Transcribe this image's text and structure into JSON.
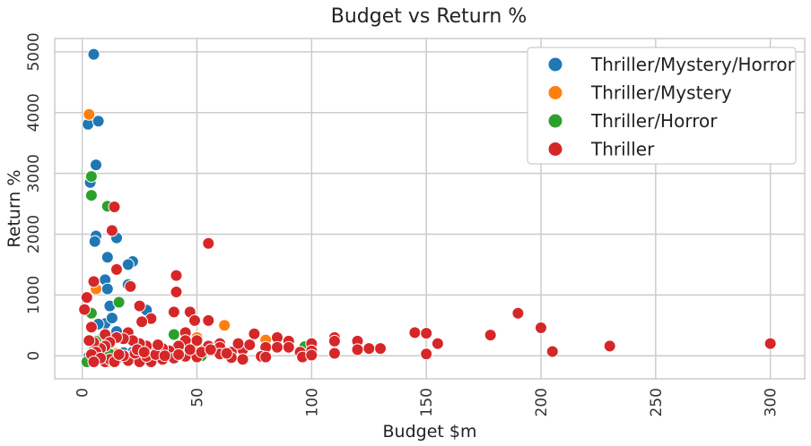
{
  "chart_data": {
    "type": "scatter",
    "title": "Budget vs Return %",
    "xlabel": "Budget $m",
    "ylabel": "Return %",
    "xlim": [
      -12,
      315
    ],
    "ylim": [
      -380,
      5220
    ],
    "xticks": [
      0,
      50,
      100,
      150,
      200,
      250,
      300
    ],
    "yticks": [
      0,
      1000,
      2000,
      3000,
      4000,
      5000
    ],
    "grid": true,
    "legend_position": "top-right",
    "series": [
      {
        "name": "Thriller/Mystery/Horror",
        "color": "#1f77b4",
        "points": [
          [
            5,
            4960
          ],
          [
            2.5,
            3810
          ],
          [
            7,
            3860
          ],
          [
            6,
            3140
          ],
          [
            3.5,
            2850
          ],
          [
            6,
            1970
          ],
          [
            5.5,
            1880
          ],
          [
            15,
            1940
          ],
          [
            22,
            1550
          ],
          [
            20,
            1500
          ],
          [
            11,
            1620
          ],
          [
            10,
            1250
          ],
          [
            20,
            1170
          ],
          [
            11,
            1100
          ],
          [
            12,
            820
          ],
          [
            10,
            530
          ],
          [
            13,
            620
          ],
          [
            7,
            520
          ],
          [
            28,
            750
          ],
          [
            15,
            400
          ],
          [
            9,
            300
          ],
          [
            5,
            180
          ],
          [
            12,
            100
          ],
          [
            18,
            50
          ],
          [
            3,
            -10
          ],
          [
            8,
            -30
          ],
          [
            10,
            -80
          ],
          [
            6,
            -60
          ],
          [
            22,
            60
          ]
        ]
      },
      {
        "name": "Thriller/Mystery",
        "color": "#ff7f0e",
        "points": [
          [
            3,
            3970
          ],
          [
            6,
            1100
          ],
          [
            62,
            500
          ],
          [
            50,
            300
          ],
          [
            80,
            260
          ],
          [
            50,
            150
          ],
          [
            12,
            80
          ],
          [
            15,
            40
          ],
          [
            10,
            -90
          ],
          [
            11,
            -100
          ],
          [
            8,
            0
          ],
          [
            20,
            -20
          ]
        ]
      },
      {
        "name": "Thriller/Horror",
        "color": "#2ca02c",
        "points": [
          [
            4,
            2950
          ],
          [
            4,
            2640
          ],
          [
            11,
            2460
          ],
          [
            4,
            700
          ],
          [
            16,
            880
          ],
          [
            6,
            240
          ],
          [
            9,
            140
          ],
          [
            2,
            -100
          ],
          [
            5,
            80
          ],
          [
            12,
            30
          ],
          [
            52,
            0
          ],
          [
            40,
            350
          ],
          [
            97,
            150
          ]
        ]
      },
      {
        "name": "Thriller",
        "color": "#d62728",
        "points": [
          [
            14,
            2450
          ],
          [
            13,
            2060
          ],
          [
            55,
            1850
          ],
          [
            15,
            1420
          ],
          [
            41,
            1320
          ],
          [
            21,
            1140
          ],
          [
            41,
            1050
          ],
          [
            5,
            1220
          ],
          [
            2,
            960
          ],
          [
            1,
            760
          ],
          [
            25,
            820
          ],
          [
            40,
            720
          ],
          [
            47,
            720
          ],
          [
            30,
            610
          ],
          [
            49,
            580
          ],
          [
            55,
            580
          ],
          [
            26,
            560
          ],
          [
            4,
            470
          ],
          [
            10,
            350
          ],
          [
            20,
            380
          ],
          [
            45,
            380
          ],
          [
            75,
            360
          ],
          [
            85,
            300
          ],
          [
            90,
            240
          ],
          [
            110,
            300
          ],
          [
            110,
            240
          ],
          [
            120,
            240
          ],
          [
            145,
            380
          ],
          [
            150,
            370
          ],
          [
            155,
            200
          ],
          [
            178,
            340
          ],
          [
            190,
            700
          ],
          [
            200,
            460
          ],
          [
            205,
            70
          ],
          [
            230,
            160
          ],
          [
            300,
            200
          ],
          [
            150,
            30
          ],
          [
            130,
            120
          ],
          [
            125,
            120
          ],
          [
            100,
            200
          ],
          [
            100,
            80
          ],
          [
            95,
            60
          ],
          [
            90,
            140
          ],
          [
            80,
            140
          ],
          [
            70,
            100
          ],
          [
            65,
            60
          ],
          [
            60,
            200
          ],
          [
            60,
            140
          ],
          [
            55,
            160
          ],
          [
            50,
            250
          ],
          [
            45,
            250
          ],
          [
            42,
            160
          ],
          [
            38,
            80
          ],
          [
            35,
            120
          ],
          [
            30,
            100
          ],
          [
            28,
            160
          ],
          [
            25,
            200
          ],
          [
            22,
            250
          ],
          [
            18,
            280
          ],
          [
            15,
            300
          ],
          [
            12,
            220
          ],
          [
            10,
            160
          ],
          [
            8,
            120
          ],
          [
            5,
            220
          ],
          [
            3,
            250
          ],
          [
            6,
            60
          ],
          [
            4,
            20
          ],
          [
            15,
            -60
          ],
          [
            20,
            -80
          ],
          [
            25,
            -100
          ],
          [
            30,
            -100
          ],
          [
            35,
            -60
          ],
          [
            40,
            -40
          ],
          [
            45,
            -10
          ],
          [
            50,
            -20
          ],
          [
            60,
            30
          ],
          [
            65,
            -30
          ],
          [
            70,
            -60
          ],
          [
            78,
            -10
          ],
          [
            80,
            -20
          ],
          [
            96,
            -20
          ],
          [
            100,
            10
          ],
          [
            110,
            40
          ],
          [
            120,
            100
          ],
          [
            10,
            -100
          ],
          [
            12,
            -60
          ],
          [
            18,
            0
          ],
          [
            23,
            40
          ],
          [
            28,
            -10
          ],
          [
            32,
            20
          ],
          [
            8,
            -40
          ],
          [
            5,
            -100
          ],
          [
            14,
            -100
          ],
          [
            16,
            20
          ],
          [
            24,
            100
          ],
          [
            27,
            60
          ],
          [
            33,
            180
          ],
          [
            36,
            0
          ],
          [
            42,
            20
          ],
          [
            47,
            100
          ],
          [
            52,
            60
          ],
          [
            56,
            100
          ],
          [
            63,
            40
          ],
          [
            68,
            200
          ],
          [
            73,
            180
          ],
          [
            85,
            140
          ]
        ]
      }
    ]
  }
}
